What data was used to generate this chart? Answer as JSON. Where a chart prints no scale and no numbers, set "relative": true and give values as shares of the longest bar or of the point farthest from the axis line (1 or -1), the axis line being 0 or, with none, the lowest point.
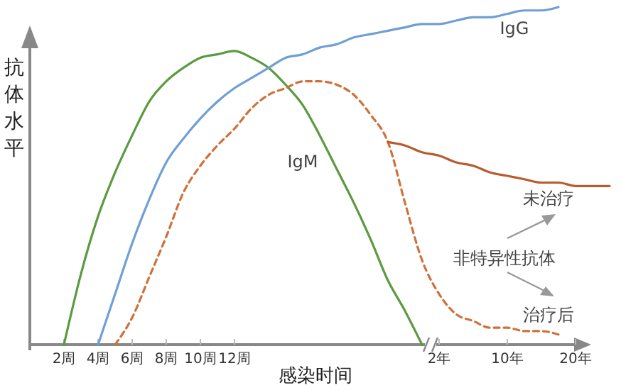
{
  "chart_data": {
    "type": "line",
    "relative": true,
    "ylabel": "抗体水平",
    "xlabel": "感染时间",
    "categories": [
      null,
      null,
      "2周",
      null,
      "4周",
      null,
      "6周",
      null,
      "8周",
      null,
      "10周",
      null,
      "12周",
      null,
      null,
      null,
      null,
      null,
      null,
      null,
      null,
      null,
      null,
      null,
      "2年",
      null,
      null,
      null,
      "10年",
      null,
      null,
      null,
      "20年",
      null,
      null
    ],
    "legend": false,
    "marker": "none",
    "annotations": [
      "非特异性抗体"
    ],
    "series": [
      {
        "name": "IgM",
        "color": "#5b9a3e",
        "line_style": "solid",
        "values": [
          null,
          null,
          0,
          0.21,
          0.38,
          0.51,
          0.62,
          0.72,
          0.78,
          0.82,
          0.85,
          0.86,
          0.87,
          0.85,
          0.82,
          0.77,
          0.71,
          0.62,
          0.52,
          0.42,
          0.31,
          0.19,
          0.1,
          0,
          null,
          null,
          null,
          null,
          null,
          null,
          null,
          null,
          null,
          null,
          null
        ]
      },
      {
        "name": "IgG",
        "color": "#6f9fd4",
        "line_style": "solid",
        "values": [
          null,
          null,
          null,
          null,
          0,
          0.15,
          0.3,
          0.43,
          0.54,
          0.61,
          0.67,
          0.72,
          0.76,
          0.79,
          0.82,
          0.85,
          0.86,
          0.88,
          0.89,
          0.91,
          0.92,
          0.93,
          0.94,
          0.95,
          0.95,
          0.96,
          0.97,
          0.97,
          0.98,
          0.99,
          0.99,
          1.0,
          null,
          null,
          null
        ]
      },
      {
        "name": "治疗后",
        "color": "#d0703a",
        "line_style": "dashed",
        "values": [
          null,
          null,
          null,
          null,
          null,
          0,
          0.08,
          0.2,
          0.32,
          0.45,
          0.53,
          0.59,
          0.64,
          0.7,
          0.74,
          0.76,
          0.78,
          0.78,
          0.77,
          0.74,
          0.68,
          0.6,
          0.42,
          0.25,
          0.15,
          0.09,
          0.07,
          0.05,
          0.05,
          0.04,
          0.04,
          0.03,
          null,
          null,
          null
        ]
      },
      {
        "name": "未治疗",
        "color": "#b85c2e",
        "line_style": "solid",
        "values": [
          null,
          null,
          null,
          null,
          null,
          null,
          null,
          null,
          null,
          null,
          null,
          null,
          null,
          null,
          null,
          null,
          null,
          null,
          null,
          null,
          null,
          0.6,
          0.59,
          0.57,
          0.56,
          0.54,
          0.53,
          0.51,
          0.5,
          0.49,
          0.48,
          0.48,
          0.47,
          0.47,
          0.47
        ]
      }
    ]
  }
}
